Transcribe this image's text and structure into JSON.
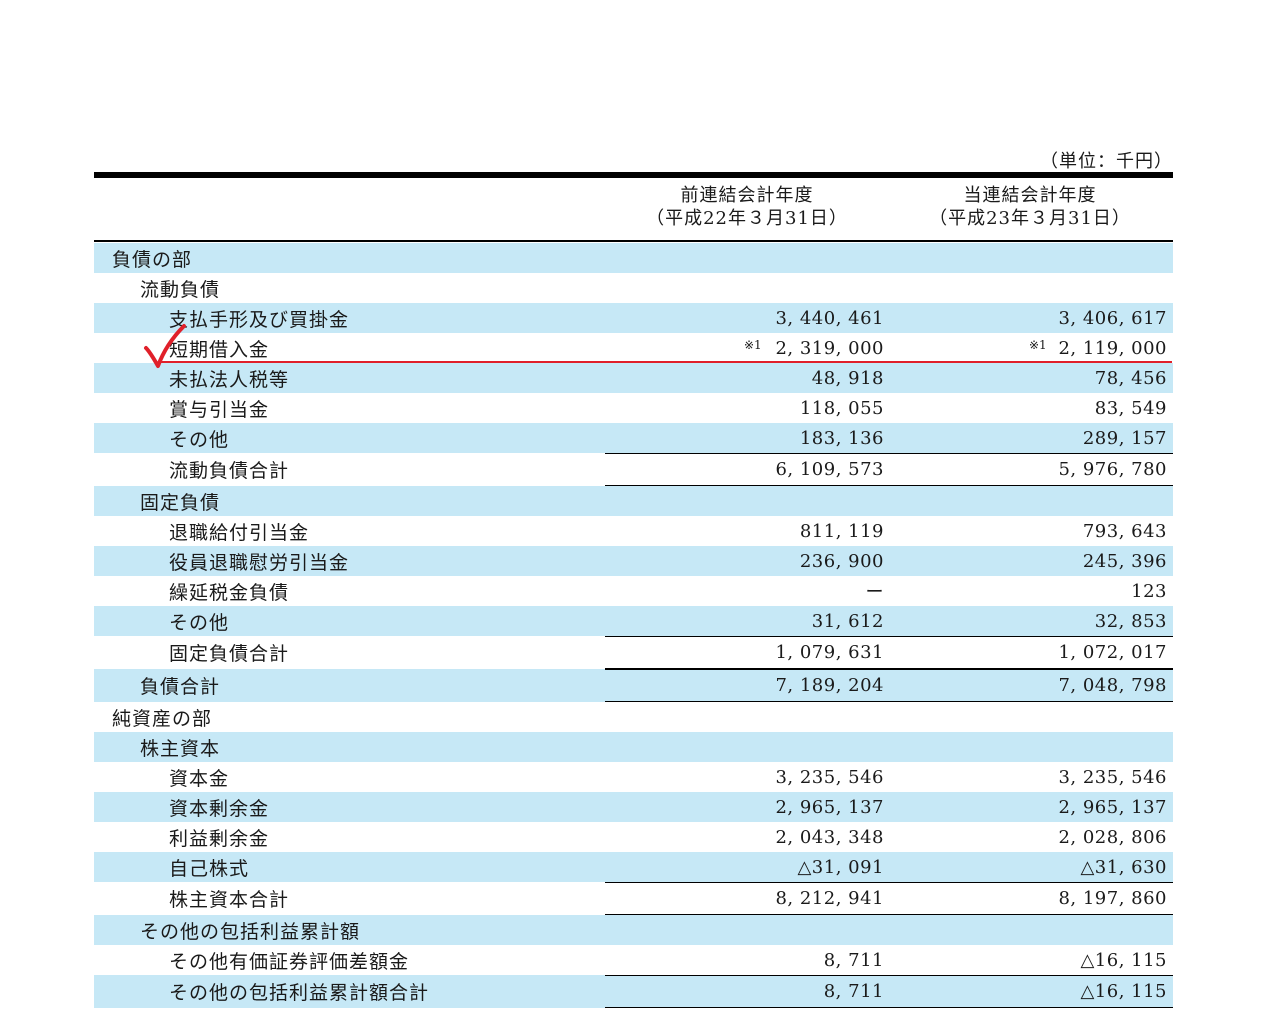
{
  "unit_label": "（単位：千円）",
  "columns": [
    {
      "title": "前連結会計年度",
      "date": "（平成22年３月31日）"
    },
    {
      "title": "当連結会計年度",
      "date": "（平成23年３月31日）"
    }
  ],
  "rows": [
    {
      "label": "負債の部",
      "level": 0,
      "prev": "",
      "curr": ""
    },
    {
      "label": "流動負債",
      "level": 1,
      "prev": "",
      "curr": ""
    },
    {
      "label": "支払手形及び買掛金",
      "level": 2,
      "prev": "3, 440, 461",
      "curr": "3, 406, 617"
    },
    {
      "label": "短期借入金",
      "level": 2,
      "prev": "2, 319, 000",
      "curr": "2, 119, 000",
      "note_prev": "※1",
      "note_curr": "※1"
    },
    {
      "label": "未払法人税等",
      "level": 2,
      "prev": "48, 918",
      "curr": "78, 456"
    },
    {
      "label": "賞与引当金",
      "level": 2,
      "prev": "118, 055",
      "curr": "83, 549"
    },
    {
      "label": "その他",
      "level": 2,
      "prev": "183, 136",
      "curr": "289, 157"
    },
    {
      "label": "流動負債合計",
      "level": 2,
      "prev": "6, 109, 573",
      "curr": "5, 976, 780",
      "total": true
    },
    {
      "label": "固定負債",
      "level": 1,
      "prev": "",
      "curr": ""
    },
    {
      "label": "退職給付引当金",
      "level": 2,
      "prev": "811, 119",
      "curr": "793, 643"
    },
    {
      "label": "役員退職慰労引当金",
      "level": 2,
      "prev": "236, 900",
      "curr": "245, 396"
    },
    {
      "label": "繰延税金負債",
      "level": 2,
      "prev": "ー",
      "curr": "123"
    },
    {
      "label": "その他",
      "level": 2,
      "prev": "31, 612",
      "curr": "32, 853"
    },
    {
      "label": "固定負債合計",
      "level": 2,
      "prev": "1, 079, 631",
      "curr": "1, 072, 017",
      "total": true
    },
    {
      "label": "負債合計",
      "level": 1,
      "prev": "7, 189, 204",
      "curr": "7, 048, 798",
      "total": true
    },
    {
      "label": "純資産の部",
      "level": 0,
      "prev": "",
      "curr": ""
    },
    {
      "label": "株主資本",
      "level": 1,
      "prev": "",
      "curr": ""
    },
    {
      "label": "資本金",
      "level": 2,
      "prev": "3, 235, 546",
      "curr": "3, 235, 546"
    },
    {
      "label": "資本剰余金",
      "level": 2,
      "prev": "2, 965, 137",
      "curr": "2, 965, 137"
    },
    {
      "label": "利益剰余金",
      "level": 2,
      "prev": "2, 043, 348",
      "curr": "2, 028, 806"
    },
    {
      "label": "自己株式",
      "level": 2,
      "prev": "△31, 091",
      "curr": "△31, 630"
    },
    {
      "label": "株主資本合計",
      "level": 2,
      "prev": "8, 212, 941",
      "curr": "8, 197, 860",
      "total": true
    },
    {
      "label": "その他の包括利益累計額",
      "level": 1,
      "prev": "",
      "curr": ""
    },
    {
      "label": "その他有価証券評価差額金",
      "level": 2,
      "prev": "8, 711",
      "curr": "△16, 115"
    },
    {
      "label": "その他の包括利益累計額合計",
      "level": 2,
      "prev": "8, 711",
      "curr": "△16, 115",
      "total": true
    }
  ],
  "colors": {
    "shade": "#c6e8f6",
    "annotation": "#e0202a"
  },
  "annotation_icon": "checkmark-icon"
}
